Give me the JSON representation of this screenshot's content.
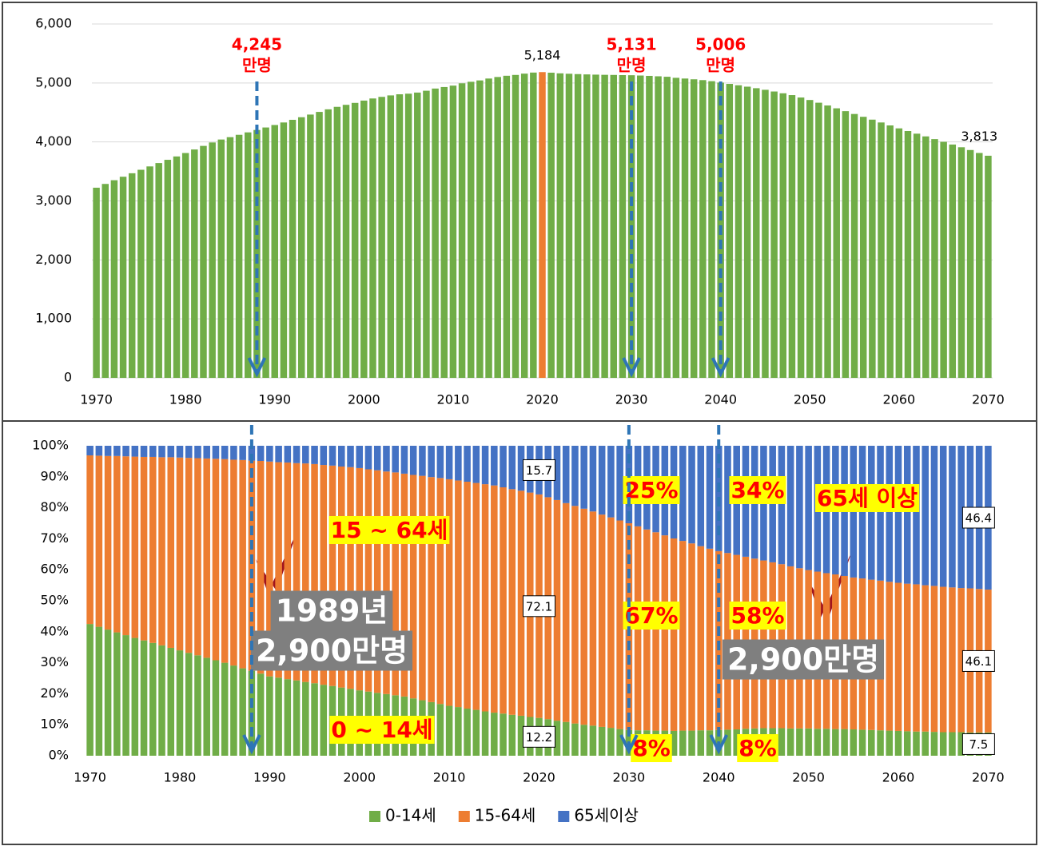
{
  "chart_data": [
    {
      "type": "bar",
      "x": [
        1970,
        1971,
        1972,
        1973,
        1974,
        1975,
        1976,
        1977,
        1978,
        1979,
        1980,
        1981,
        1982,
        1983,
        1984,
        1985,
        1986,
        1987,
        1988,
        1989,
        1990,
        1991,
        1992,
        1993,
        1994,
        1995,
        1996,
        1997,
        1998,
        1999,
        2000,
        2001,
        2002,
        2003,
        2004,
        2005,
        2006,
        2007,
        2008,
        2009,
        2010,
        2011,
        2012,
        2013,
        2014,
        2015,
        2016,
        2017,
        2018,
        2019,
        2020,
        2021,
        2022,
        2023,
        2024,
        2025,
        2026,
        2027,
        2028,
        2029,
        2030,
        2031,
        2032,
        2033,
        2034,
        2035,
        2036,
        2037,
        2038,
        2039,
        2040,
        2041,
        2042,
        2043,
        2044,
        2045,
        2046,
        2047,
        2048,
        2049,
        2050,
        2051,
        2052,
        2053,
        2054,
        2055,
        2056,
        2057,
        2058,
        2059,
        2060,
        2061,
        2062,
        2063,
        2064,
        2065,
        2066,
        2067,
        2068,
        2069,
        2070
      ],
      "values": [
        3224,
        3288,
        3351,
        3410,
        3469,
        3528,
        3585,
        3642,
        3697,
        3754,
        3812,
        3872,
        3933,
        3991,
        4041,
        4081,
        4121,
        4162,
        4203,
        4245,
        4287,
        4330,
        4375,
        4419,
        4464,
        4509,
        4553,
        4595,
        4629,
        4662,
        4701,
        4737,
        4764,
        4789,
        4808,
        4818,
        4837,
        4868,
        4905,
        4931,
        4955,
        4994,
        5020,
        5043,
        5075,
        5101,
        5122,
        5136,
        5158,
        5176,
        5184,
        5174,
        5163,
        5156,
        5150,
        5145,
        5141,
        5138,
        5136,
        5133,
        5131,
        5126,
        5120,
        5113,
        5105,
        5087,
        5075,
        5062,
        5048,
        5030,
        5006,
        4984,
        4961,
        4937,
        4911,
        4884,
        4855,
        4825,
        4794,
        4753,
        4711,
        4665,
        4618,
        4570,
        4522,
        4474,
        4426,
        4378,
        4330,
        4280,
        4230,
        4185,
        4140,
        4094,
        4048,
        4002,
        3956,
        3910,
        3863,
        3813,
        3766
      ],
      "color": "#70ad47",
      "highlight": {
        "x": 2020,
        "color": "#ed7d31"
      },
      "xlim": [
        1969.5,
        2070.5
      ],
      "xticks": [
        1970,
        1980,
        1990,
        2000,
        2010,
        2020,
        2030,
        2040,
        2050,
        2060,
        2070
      ],
      "ylim": [
        0,
        6000
      ],
      "yticks": [
        0,
        {
          "value": 1000,
          "label": "1,000"
        },
        {
          "value": 2000,
          "label": "2,000"
        },
        {
          "value": 3000,
          "label": "3,000"
        },
        {
          "value": 4000,
          "label": "4,000"
        },
        {
          "value": 5000,
          "label": "5,000"
        },
        {
          "value": 6000,
          "label": "6,000"
        }
      ],
      "grid": true,
      "annotations": [
        {
          "x": 1988,
          "text": [
            "4,245",
            "만명"
          ],
          "color": "#ff0000",
          "arrow": true
        },
        {
          "x": 2020,
          "text": [
            "5,184"
          ],
          "color": "#000000"
        },
        {
          "x": 2030,
          "text": [
            "5,131",
            "만명"
          ],
          "color": "#ff0000",
          "arrow": true
        },
        {
          "x": 2040,
          "text": [
            "5,006",
            "만명"
          ],
          "color": "#ff0000",
          "arrow": true
        },
        {
          "x": 2069,
          "text": [
            "3,813"
          ],
          "color": "#000000"
        }
      ]
    },
    {
      "type": "stacked_bar",
      "x": [
        1970,
        1971,
        1972,
        1973,
        1974,
        1975,
        1976,
        1977,
        1978,
        1979,
        1980,
        1981,
        1982,
        1983,
        1984,
        1985,
        1986,
        1987,
        1988,
        1989,
        1990,
        1991,
        1992,
        1993,
        1994,
        1995,
        1996,
        1997,
        1998,
        1999,
        2000,
        2001,
        2002,
        2003,
        2004,
        2005,
        2006,
        2007,
        2008,
        2009,
        2010,
        2011,
        2012,
        2013,
        2014,
        2015,
        2016,
        2017,
        2018,
        2019,
        2020,
        2021,
        2022,
        2023,
        2024,
        2025,
        2026,
        2027,
        2028,
        2029,
        2030,
        2031,
        2032,
        2033,
        2034,
        2035,
        2036,
        2037,
        2038,
        2039,
        2040,
        2041,
        2042,
        2043,
        2044,
        2045,
        2046,
        2047,
        2048,
        2049,
        2050,
        2051,
        2052,
        2053,
        2054,
        2055,
        2056,
        2057,
        2058,
        2059,
        2060,
        2061,
        2062,
        2063,
        2064,
        2065,
        2066,
        2067,
        2068,
        2069,
        2070
      ],
      "series": [
        {
          "name": "0-14세",
          "color": "#70ad47",
          "values": [
            42.5,
            41.6,
            40.7,
            39.8,
            38.9,
            38.0,
            37.2,
            36.4,
            35.6,
            34.8,
            34.0,
            33.2,
            32.4,
            31.6,
            30.8,
            30.0,
            29.1,
            28.2,
            27.4,
            26.5,
            25.6,
            25.2,
            24.7,
            24.3,
            23.8,
            23.4,
            22.9,
            22.5,
            22.0,
            21.6,
            21.1,
            20.7,
            20.3,
            19.9,
            19.5,
            19.1,
            18.5,
            17.9,
            17.3,
            16.7,
            16.1,
            15.7,
            15.2,
            14.8,
            14.3,
            13.9,
            13.6,
            13.2,
            12.9,
            12.5,
            12.2,
            11.8,
            11.3,
            10.9,
            10.4,
            10.0,
            9.7,
            9.3,
            9.0,
            8.6,
            8.3,
            8.2,
            8.2,
            8.1,
            8.1,
            8.0,
            8.1,
            8.1,
            8.2,
            8.2,
            8.3,
            8.4,
            8.5,
            8.7,
            8.8,
            8.9,
            8.9,
            8.9,
            8.8,
            8.8,
            8.8,
            8.7,
            8.7,
            8.6,
            8.6,
            8.5,
            8.4,
            8.3,
            8.2,
            8.1,
            8.0,
            7.9,
            7.8,
            7.8,
            7.7,
            7.6,
            7.6,
            7.6,
            7.5,
            7.5,
            7.5
          ]
        },
        {
          "name": "15-64세",
          "color": "#ed7d31",
          "values": [
            54.4,
            55.2,
            56.0,
            56.9,
            57.7,
            58.5,
            59.2,
            60.0,
            60.7,
            61.5,
            62.2,
            62.9,
            63.6,
            64.3,
            65.0,
            65.7,
            66.4,
            67.2,
            67.8,
            68.6,
            69.3,
            69.5,
            69.9,
            70.1,
            70.5,
            70.7,
            70.9,
            71.1,
            71.3,
            71.5,
            71.7,
            71.7,
            71.8,
            71.8,
            71.9,
            71.9,
            72.1,
            72.4,
            72.6,
            72.9,
            73.1,
            73.1,
            73.2,
            73.2,
            73.3,
            73.3,
            73.0,
            72.8,
            72.6,
            72.4,
            72.1,
            71.6,
            71.2,
            70.6,
            70.2,
            69.7,
            69.1,
            68.5,
            67.9,
            67.3,
            66.7,
            65.8,
            64.8,
            64.0,
            63.0,
            62.1,
            61.2,
            60.4,
            59.4,
            58.6,
            57.7,
            57.0,
            56.3,
            55.5,
            54.8,
            54.1,
            53.5,
            52.9,
            52.3,
            51.7,
            51.1,
            50.7,
            50.2,
            49.9,
            49.4,
            49.0,
            48.8,
            48.5,
            48.3,
            48.0,
            47.8,
            47.6,
            47.5,
            47.2,
            47.1,
            46.9,
            46.7,
            46.5,
            46.5,
            46.3,
            46.1
          ]
        },
        {
          "name": "65세이상",
          "color": "#4472c4",
          "values": [
            3.1,
            3.2,
            3.3,
            3.3,
            3.4,
            3.5,
            3.6,
            3.6,
            3.7,
            3.7,
            3.8,
            3.9,
            4.0,
            4.1,
            4.2,
            4.3,
            4.5,
            4.6,
            4.8,
            4.9,
            5.1,
            5.3,
            5.4,
            5.6,
            5.7,
            5.9,
            6.2,
            6.4,
            6.7,
            6.9,
            7.2,
            7.6,
            7.9,
            8.3,
            8.6,
            9.0,
            9.4,
            9.7,
            10.1,
            10.4,
            10.8,
            11.2,
            11.6,
            12.0,
            12.4,
            12.8,
            13.4,
            14.0,
            14.5,
            15.1,
            15.7,
            16.6,
            17.5,
            18.5,
            19.4,
            20.3,
            21.2,
            22.2,
            23.1,
            24.1,
            25.0,
            26.0,
            27.0,
            27.9,
            28.9,
            29.9,
            30.7,
            31.5,
            32.4,
            33.2,
            34.0,
            34.6,
            35.2,
            35.8,
            36.4,
            37.0,
            37.6,
            38.2,
            38.9,
            39.5,
            40.1,
            40.6,
            41.1,
            41.5,
            42.0,
            42.5,
            42.8,
            43.2,
            43.5,
            43.9,
            44.2,
            44.5,
            44.7,
            45.0,
            45.2,
            45.5,
            45.7,
            45.9,
            46.0,
            46.2,
            46.4
          ]
        }
      ],
      "labeled_x": [
        2020,
        2070
      ],
      "xlim": [
        1969.5,
        2070.5
      ],
      "xticks": [
        1970,
        1980,
        1990,
        2000,
        2010,
        2020,
        2030,
        2040,
        2050,
        2060,
        2070
      ],
      "ylim": [
        0,
        100
      ],
      "yticks": [
        {
          "value": 0,
          "label": "0%"
        },
        {
          "value": 10,
          "label": "10%"
        },
        {
          "value": 20,
          "label": "20%"
        },
        {
          "value": 30,
          "label": "30%"
        },
        {
          "value": 40,
          "label": "40%"
        },
        {
          "value": 50,
          "label": "50%"
        },
        {
          "value": 60,
          "label": "60%"
        },
        {
          "value": 70,
          "label": "70%"
        },
        {
          "value": 80,
          "label": "80%"
        },
        {
          "value": 90,
          "label": "90%"
        },
        {
          "value": 100,
          "label": "100%"
        }
      ],
      "legend": "bottom",
      "annotations": [
        {
          "text": "15 ~ 64세",
          "style": "highlight"
        },
        {
          "text": "0 ~ 14세",
          "style": "highlight"
        },
        {
          "text": "65세 이상",
          "style": "highlight"
        },
        {
          "text": "25%",
          "style": "highlight"
        },
        {
          "text": "67%",
          "style": "highlight"
        },
        {
          "text": "8%",
          "style": "highlight"
        },
        {
          "text": "34%",
          "style": "highlight"
        },
        {
          "text": "58%",
          "style": "highlight"
        },
        {
          "text": "8%",
          "style": "highlight"
        },
        {
          "text": "1989년",
          "style": "box"
        },
        {
          "text": "2,900만명",
          "style": "box"
        },
        {
          "text": "2,900만명",
          "style": "box"
        }
      ]
    }
  ]
}
